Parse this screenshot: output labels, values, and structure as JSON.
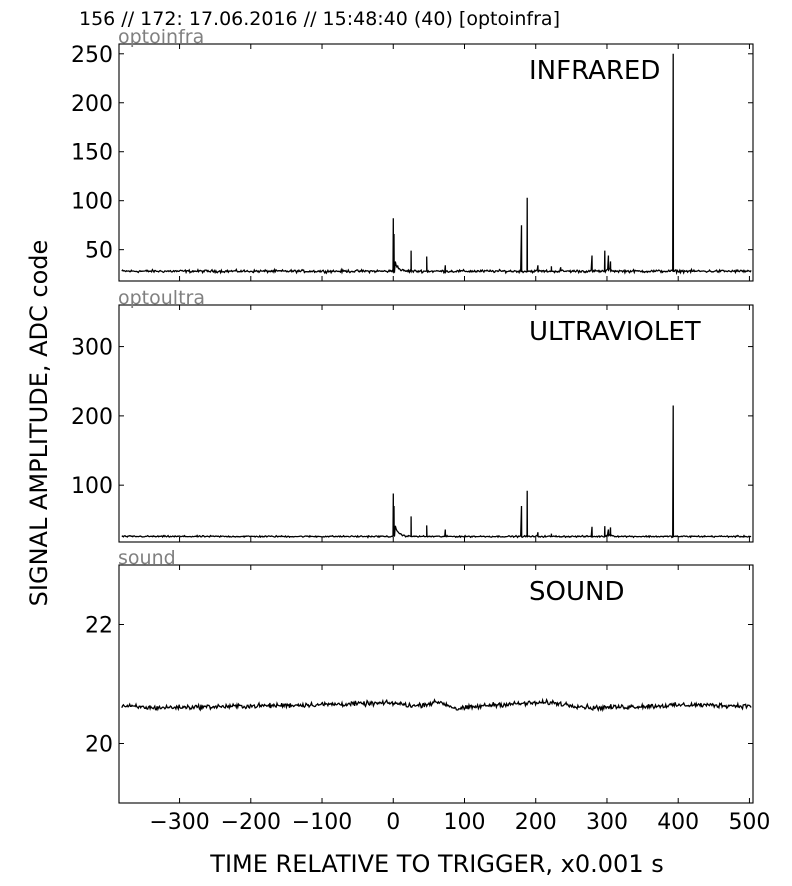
{
  "header": "156 // 172:   17.06.2016 // 15:48:40 (40)  [optoinfra]",
  "ylabel": "SIGNAL AMPLITUDE,  ADC code",
  "xlabel": "TIME RELATIVE TO TRIGGER,   x0.001 s",
  "colors": {
    "line": "#000000",
    "tag": "#808080",
    "frame": "#000000"
  },
  "chart_data": [
    {
      "type": "line",
      "tag": "optoinfra",
      "title": "INFRARED",
      "xlim": [
        -385,
        505
      ],
      "ylim": [
        18,
        260
      ],
      "yticks": [
        50,
        100,
        150,
        200,
        250
      ],
      "xticks": [
        -300,
        -200,
        -100,
        0,
        100,
        200,
        300,
        400,
        500
      ],
      "show_xtick_labels": false,
      "baseline": 28,
      "noise": 1.0,
      "bumps": [
        {
          "x": 2,
          "amp": 12,
          "decay": 4
        },
        {
          "x": 300,
          "amp": 4,
          "decay": 4
        }
      ],
      "spikes": [
        {
          "x": 0,
          "y": 82
        },
        {
          "x": 1,
          "y": 66
        },
        {
          "x": 25,
          "y": 49
        },
        {
          "x": 47,
          "y": 43
        },
        {
          "x": 73,
          "y": 34
        },
        {
          "x": 180,
          "y": 75
        },
        {
          "x": 188,
          "y": 103
        },
        {
          "x": 203,
          "y": 34
        },
        {
          "x": 222,
          "y": 33
        },
        {
          "x": 235,
          "y": 32
        },
        {
          "x": 279,
          "y": 44
        },
        {
          "x": 297,
          "y": 49
        },
        {
          "x": 302,
          "y": 44
        },
        {
          "x": 305,
          "y": 38
        },
        {
          "x": 393,
          "y": 250
        }
      ]
    },
    {
      "type": "line",
      "tag": "optoultra",
      "title": "ULTRAVIOLET",
      "xlim": [
        -385,
        505
      ],
      "ylim": [
        18,
        360
      ],
      "yticks": [
        100,
        200,
        300
      ],
      "xticks": [
        -300,
        -200,
        -100,
        0,
        100,
        200,
        300,
        400,
        500
      ],
      "show_xtick_labels": false,
      "baseline": 26,
      "noise": 0.8,
      "bumps": [
        {
          "x": 2,
          "amp": 17,
          "decay": 5
        },
        {
          "x": 300,
          "amp": 5,
          "decay": 5
        }
      ],
      "spikes": [
        {
          "x": 0,
          "y": 88
        },
        {
          "x": 1,
          "y": 70
        },
        {
          "x": 25,
          "y": 55
        },
        {
          "x": 47,
          "y": 42
        },
        {
          "x": 73,
          "y": 36
        },
        {
          "x": 180,
          "y": 70
        },
        {
          "x": 188,
          "y": 92
        },
        {
          "x": 203,
          "y": 32
        },
        {
          "x": 222,
          "y": 30
        },
        {
          "x": 279,
          "y": 40
        },
        {
          "x": 297,
          "y": 41
        },
        {
          "x": 302,
          "y": 36
        },
        {
          "x": 305,
          "y": 39
        },
        {
          "x": 393,
          "y": 215
        }
      ]
    },
    {
      "type": "line",
      "tag": "sound",
      "title": "SOUND",
      "xlim": [
        -385,
        505
      ],
      "ylim": [
        19.0,
        23.0
      ],
      "yticks": [
        20,
        22
      ],
      "xticks": [
        -300,
        -200,
        -100,
        0,
        100,
        200,
        300,
        400,
        500
      ],
      "show_xtick_labels": true,
      "baseline": 20.63,
      "noise": 0.03,
      "wobble": [
        {
          "x": -380,
          "dy": 0.0
        },
        {
          "x": -340,
          "dy": -0.03
        },
        {
          "x": -200,
          "dy": 0.0
        },
        {
          "x": 0,
          "dy": 0.05
        },
        {
          "x": 30,
          "dy": 0.0
        },
        {
          "x": 65,
          "dy": 0.07
        },
        {
          "x": 90,
          "dy": -0.05
        },
        {
          "x": 140,
          "dy": 0.02
        },
        {
          "x": 220,
          "dy": 0.06
        },
        {
          "x": 280,
          "dy": -0.03
        },
        {
          "x": 420,
          "dy": 0.02
        },
        {
          "x": 500,
          "dy": 0.0
        }
      ]
    }
  ]
}
